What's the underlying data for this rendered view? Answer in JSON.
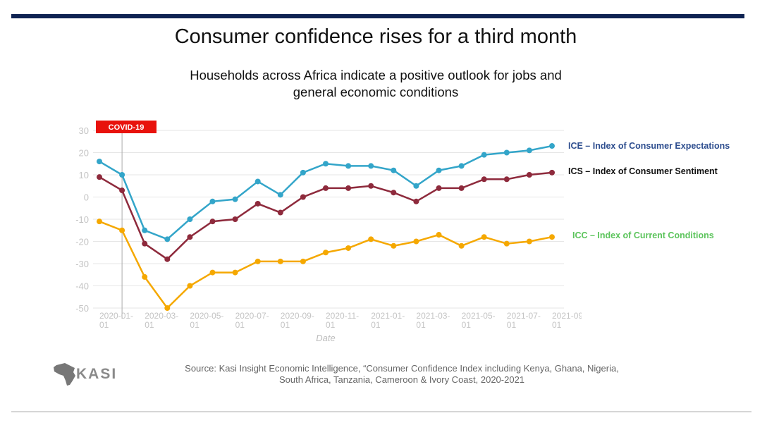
{
  "chart_data": {
    "type": "line",
    "title": "Consumer confidence rises for a third month",
    "subtitle": "Households across Africa indicate a positive outlook for jobs and general economic conditions",
    "x_label": "Date",
    "annotation": "COVID-19",
    "annotation_x": "2020-02-01",
    "source": "Source: Kasi Insight Economic Intelligence, “Consumer Confidence Index including Kenya, Ghana, Nigeria, South Africa, Tanzania, Cameroon & Ivory Coast, 2020-2021",
    "logo": "KASI",
    "x": [
      "2020-01-01",
      "2020-02-01",
      "2020-03-01",
      "2020-04-01",
      "2020-05-01",
      "2020-06-01",
      "2020-07-01",
      "2020-08-01",
      "2020-09-01",
      "2020-10-01",
      "2020-11-01",
      "2020-12-01",
      "2021-01-01",
      "2021-02-01",
      "2021-03-01",
      "2021-04-01",
      "2021-05-01",
      "2021-06-01",
      "2021-07-01",
      "2021-08-01",
      "2021-09-01"
    ],
    "xlim": [
      "2020-01-01",
      "2021-09-01"
    ],
    "xticks": [
      "2020-01-01",
      "2020-03-01",
      "2020-05-01",
      "2020-07-01",
      "2020-09-01",
      "2020-11-01",
      "2021-01-01",
      "2021-03-01",
      "2021-05-01",
      "2021-07-01",
      "2021-09-01"
    ],
    "ylim": [
      -50,
      30
    ],
    "yticks": [
      -50,
      -40,
      -30,
      -20,
      -10,
      0,
      10,
      20,
      30
    ],
    "grid": true,
    "series": [
      {
        "name": "ICE – Index of Consumer Expectations",
        "color": "#33a5c9",
        "label_color": "#2e4e8f",
        "values": [
          16,
          10,
          -15,
          -19,
          -10,
          -2,
          -1,
          7,
          1,
          11,
          15,
          14,
          14,
          12,
          5,
          12,
          14,
          19,
          20,
          21,
          23
        ]
      },
      {
        "name": "ICS – Index of Consumer Sentiment",
        "color": "#8e2a3c",
        "label_color": "#111111",
        "values": [
          9,
          3,
          -21,
          -28,
          -18,
          -11,
          -10,
          -3,
          -7,
          0,
          4,
          4,
          5,
          2,
          -2,
          4,
          4,
          8,
          8,
          10,
          11
        ]
      },
      {
        "name": "ICC – Index of Current Conditions",
        "color": "#f5a800",
        "label_color": "#5cc45c",
        "values": [
          -11,
          -15,
          -36,
          -50,
          -40,
          -34,
          -34,
          -29,
          -29,
          -29,
          -25,
          -23,
          -19,
          -22,
          -20,
          -17,
          -22,
          -18,
          -21,
          -20,
          -18
        ]
      }
    ]
  }
}
